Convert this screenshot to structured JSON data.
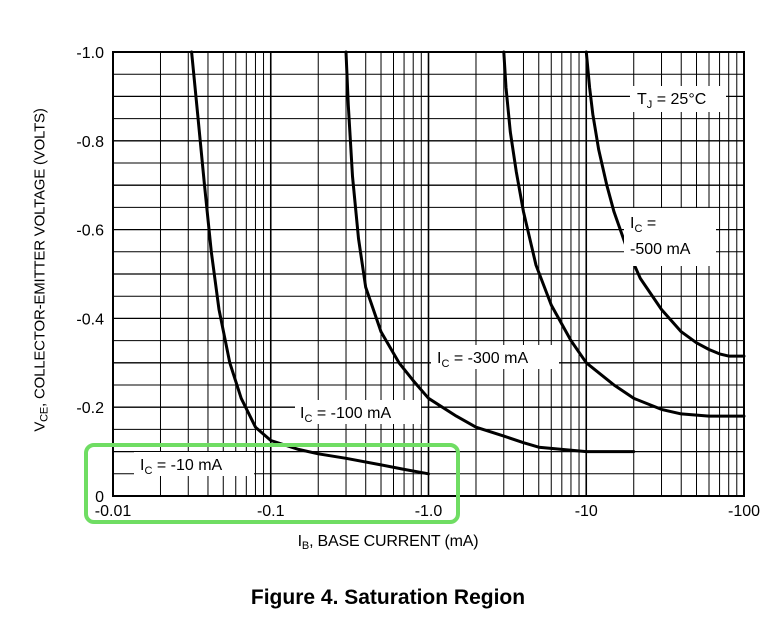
{
  "chart_data": {
    "type": "line",
    "title": "Figure 4. Saturation Region",
    "xlabel": {
      "symbol": "I",
      "sub": "B",
      "text": ", BASE CURRENT (mA)"
    },
    "ylabel": {
      "symbol": "V",
      "sub": "CE",
      "text": ", COLLECTOR-EMITTER VOLTAGE (VOLTS)"
    },
    "x_scale": "log",
    "xlim": [
      -0.01,
      -100
    ],
    "ylim": [
      0,
      -1.0
    ],
    "grid": true,
    "x_ticks": [
      {
        "value": -0.01,
        "label": "-0.01"
      },
      {
        "value": -0.1,
        "label": "-0.1"
      },
      {
        "value": -1.0,
        "label": "-1.0"
      },
      {
        "value": -10,
        "label": "-10"
      },
      {
        "value": -100,
        "label": "-100"
      }
    ],
    "y_ticks": [
      {
        "value": 0,
        "label": "0"
      },
      {
        "value": -0.2,
        "label": "-0.2"
      },
      {
        "value": -0.4,
        "label": "-0.4"
      },
      {
        "value": -0.6,
        "label": "-0.6"
      },
      {
        "value": -0.8,
        "label": "-0.8"
      },
      {
        "value": -1.0,
        "label": "-1.0"
      }
    ],
    "annotation_tj": {
      "symbol": "T",
      "sub": "J",
      "text": " = 25°C"
    },
    "series": [
      {
        "name": "IC = -10 mA",
        "label_symbol": "I",
        "label_sub": "C",
        "label_text": " = -10 mA",
        "x": [
          -0.0315,
          -0.034,
          -0.038,
          -0.042,
          -0.047,
          -0.055,
          -0.065,
          -0.08,
          -0.1,
          -0.15,
          -0.2,
          -0.3,
          -0.5,
          -0.7,
          -1.0
        ],
        "y": [
          -1.0,
          -0.88,
          -0.7,
          -0.55,
          -0.42,
          -0.3,
          -0.22,
          -0.155,
          -0.125,
          -0.105,
          -0.095,
          -0.085,
          -0.07,
          -0.06,
          -0.05
        ]
      },
      {
        "name": "IC = -100 mA",
        "label_symbol": "I",
        "label_sub": "C",
        "label_text": " = -100 mA",
        "x": [
          -0.3,
          -0.31,
          -0.33,
          -0.36,
          -0.4,
          -0.5,
          -0.65,
          -0.8,
          -1.0,
          -1.5,
          -2.0,
          -3.0,
          -4.0,
          -5.0,
          -7.0,
          -10,
          -15,
          -20
        ],
        "y": [
          -1.0,
          -0.88,
          -0.72,
          -0.58,
          -0.47,
          -0.37,
          -0.3,
          -0.26,
          -0.22,
          -0.18,
          -0.155,
          -0.135,
          -0.12,
          -0.11,
          -0.105,
          -0.1,
          -0.1,
          -0.1
        ]
      },
      {
        "name": "IC = -300 mA",
        "label_symbol": "I",
        "label_sub": "C",
        "label_text": " = -300 mA",
        "x": [
          -3.0,
          -3.1,
          -3.3,
          -3.6,
          -4.0,
          -4.8,
          -6.0,
          -8.0,
          -10,
          -15,
          -20,
          -30,
          -40,
          -60,
          -100
        ],
        "y": [
          -1.0,
          -0.92,
          -0.82,
          -0.73,
          -0.64,
          -0.52,
          -0.43,
          -0.35,
          -0.3,
          -0.25,
          -0.22,
          -0.195,
          -0.185,
          -0.18,
          -0.18
        ]
      },
      {
        "name": "IC = -500 mA",
        "label_symbol": "I",
        "label_sub": "C",
        "label_text": " = -500 mA",
        "x": [
          -10,
          -10.5,
          -11,
          -12,
          -13.5,
          -15,
          -18,
          -22,
          -30,
          -40,
          -50,
          -60,
          -70,
          -80,
          -100
        ],
        "y": [
          -1.0,
          -0.92,
          -0.86,
          -0.78,
          -0.7,
          -0.64,
          -0.56,
          -0.49,
          -0.42,
          -0.37,
          -0.345,
          -0.33,
          -0.32,
          -0.315,
          -0.315
        ]
      }
    ]
  }
}
